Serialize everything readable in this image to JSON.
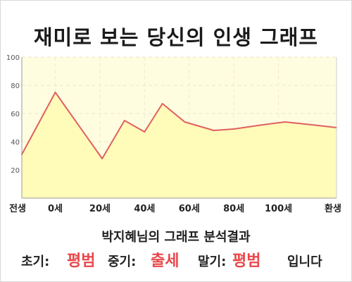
{
  "title": "재미로 보는 당신의 인생 그래프",
  "subtitle": "박지혜님의 그래프 분석결과",
  "result": {
    "early_label": "초기:",
    "early_value": "평범",
    "middle_label": "중기:",
    "middle_value": "출세",
    "late_label": "말기:",
    "late_value": "평범",
    "suffix": "입니다"
  },
  "colors": {
    "plot_background": "#fffde0",
    "area_fill": "#fffbb8",
    "line": "#e06060",
    "highlight_text": "#e8484c"
  },
  "chart_data": {
    "type": "area",
    "title": "재미로 보는 당신의 인생 그래프",
    "x": [
      -15,
      0,
      21,
      31,
      40,
      48,
      58,
      71,
      80,
      93,
      103,
      115,
      126
    ],
    "values": [
      31,
      75,
      28,
      55,
      47,
      67,
      54,
      48,
      49,
      52,
      54,
      52,
      50
    ],
    "x_ticks": [
      {
        "x": -15,
        "label": "전생"
      },
      {
        "x": 0,
        "label": "0세"
      },
      {
        "x": 20,
        "label": "20세"
      },
      {
        "x": 40,
        "label": "40세"
      },
      {
        "x": 60,
        "label": "60세"
      },
      {
        "x": 80,
        "label": "80세"
      },
      {
        "x": 100,
        "label": "100세"
      },
      {
        "x": 126,
        "label": "환생"
      }
    ],
    "xlim": [
      -15,
      126
    ],
    "y_ticks": [
      20,
      40,
      60,
      80,
      100
    ],
    "ylim": [
      0,
      100
    ],
    "grid": true,
    "legend": false
  }
}
